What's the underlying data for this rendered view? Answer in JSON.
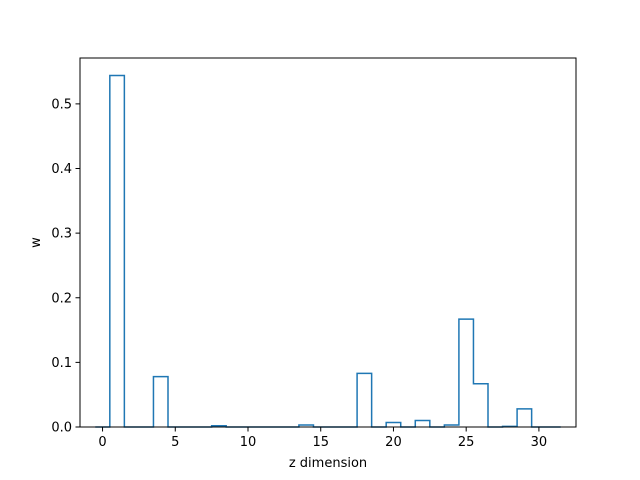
{
  "chart_data": {
    "type": "bar",
    "style": "step-outline",
    "title": "",
    "xlabel": "z dimension",
    "ylabel": "w",
    "xlim": [
      -1.55,
      32.55
    ],
    "ylim": [
      0,
      0.571
    ],
    "xticks": [
      0,
      5,
      10,
      15,
      20,
      25,
      30
    ],
    "yticks": [
      0.0,
      0.1,
      0.2,
      0.3,
      0.4,
      0.5
    ],
    "ytick_labels": [
      "0.0",
      "0.1",
      "0.2",
      "0.3",
      "0.4",
      "0.5"
    ],
    "grid": false,
    "color": "#1f77b4",
    "bins": [
      {
        "x": 0,
        "value": 0.0
      },
      {
        "x": 1,
        "value": 0.544
      },
      {
        "x": 2,
        "value": 0.0
      },
      {
        "x": 3,
        "value": 0.0
      },
      {
        "x": 4,
        "value": 0.078
      },
      {
        "x": 5,
        "value": 0.0
      },
      {
        "x": 6,
        "value": 0.0
      },
      {
        "x": 7,
        "value": 0.0
      },
      {
        "x": 8,
        "value": 0.002
      },
      {
        "x": 9,
        "value": 0.0
      },
      {
        "x": 10,
        "value": 0.0
      },
      {
        "x": 11,
        "value": 0.0
      },
      {
        "x": 12,
        "value": 0.0
      },
      {
        "x": 13,
        "value": 0.0
      },
      {
        "x": 14,
        "value": 0.003
      },
      {
        "x": 15,
        "value": 0.0
      },
      {
        "x": 16,
        "value": 0.0
      },
      {
        "x": 17,
        "value": 0.0
      },
      {
        "x": 18,
        "value": 0.083
      },
      {
        "x": 19,
        "value": 0.0
      },
      {
        "x": 20,
        "value": 0.007
      },
      {
        "x": 21,
        "value": 0.0
      },
      {
        "x": 22,
        "value": 0.01
      },
      {
        "x": 23,
        "value": 0.0
      },
      {
        "x": 24,
        "value": 0.003
      },
      {
        "x": 25,
        "value": 0.167
      },
      {
        "x": 26,
        "value": 0.067
      },
      {
        "x": 27,
        "value": 0.0
      },
      {
        "x": 28,
        "value": 0.001
      },
      {
        "x": 29,
        "value": 0.028
      },
      {
        "x": 30,
        "value": 0.0
      },
      {
        "x": 31,
        "value": 0.0
      }
    ]
  }
}
